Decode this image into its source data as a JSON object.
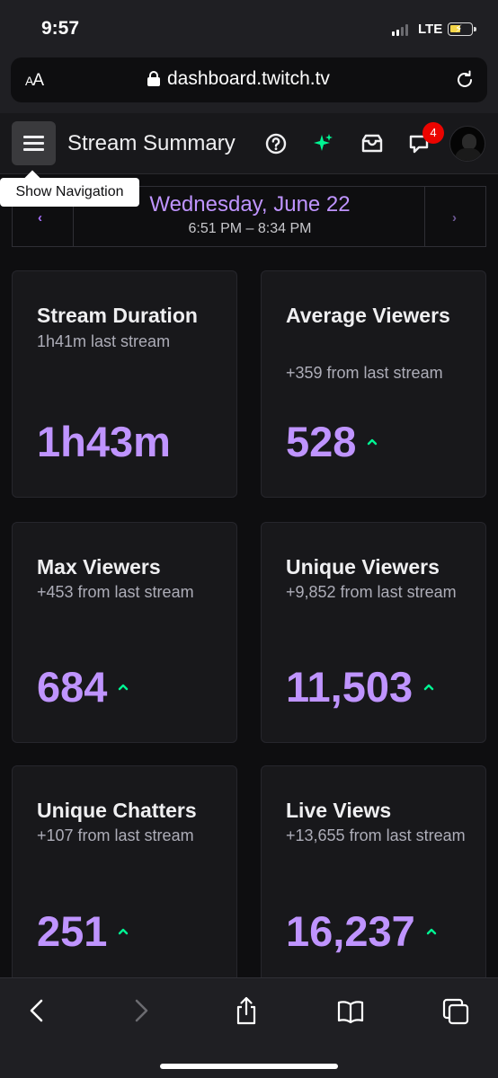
{
  "status_bar": {
    "time": "9:57",
    "network": "LTE"
  },
  "browser": {
    "text_size_label": "AA",
    "domain": "dashboard.twitch.tv"
  },
  "nav": {
    "title": "Stream Summary",
    "tooltip": "Show Navigation",
    "notification_count": "4",
    "accent_color": "#bf94ff"
  },
  "date_range": {
    "day": "Wednesday, June 22",
    "time_range": "6:51 PM – 8:34 PM"
  },
  "stats": [
    {
      "title": "Stream Duration",
      "subtitle": "1h41m last stream",
      "value": "1h43m"
    },
    {
      "title": "Average Viewers",
      "subtitle": "+359 from last stream",
      "value": "528"
    },
    {
      "title": "Max Viewers",
      "subtitle": "+453 from last stream",
      "value": "684"
    },
    {
      "title": "Unique Viewers",
      "subtitle": "+9,852 from last stream",
      "value": "11,503"
    },
    {
      "title": "Unique Chatters",
      "subtitle": "+107 from last stream",
      "value": "251"
    },
    {
      "title": "Live Views",
      "subtitle": "+13,655 from last stream",
      "value": "16,237"
    }
  ],
  "icons": {
    "menu": "hamburger-menu-icon",
    "help": "question-mark-icon",
    "sparkle": "sparkle-icon",
    "inbox": "inbox-icon",
    "whispers": "whisper-chat-icon",
    "trend_up": "chevron-up-icon",
    "toolbar": [
      "back-icon",
      "forward-icon",
      "share-icon",
      "bookmarks-icon",
      "tabs-icon"
    ]
  }
}
